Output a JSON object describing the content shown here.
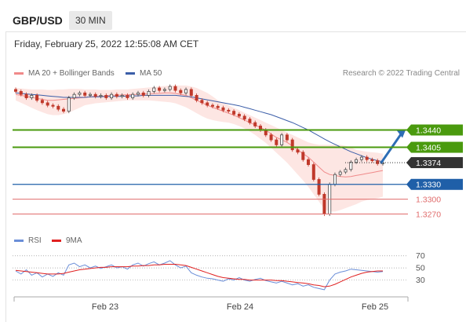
{
  "header": {
    "pair": "GBP/USD",
    "timeframe": "30 MIN"
  },
  "date_line": "Friday, February 25, 2022 12:55:08 AM CET",
  "credit": "Research © 2022 Trading Central",
  "colors": {
    "resistance": "#4a9a0e",
    "support": "#1f5fa8",
    "weak_support": "#e06c6c",
    "current": "#333333",
    "bollinger_fill": "#fde3e0",
    "ma20": "#f08a8a",
    "ma50": "#3b5ea8",
    "candle_up": "#4a4a4a",
    "candle_down": "#c0392b",
    "rsi": "#6a8ed8",
    "rsi_ma": "#e02020",
    "arrow": "#2d6db5"
  },
  "chart_data": [
    {
      "type": "candlestick",
      "legend": [
        {
          "name": "MA 20 + Bollinger Bands",
          "color": "#f08a8a"
        },
        {
          "name": "MA 50",
          "color": "#3b5ea8"
        }
      ],
      "x_labels": [
        "Feb 23",
        "Feb 24",
        "Feb 25"
      ],
      "ylim": [
        1.3255,
        1.3525
      ],
      "levels": [
        {
          "value": 1.344,
          "label": "1.3440",
          "kind": "resistance"
        },
        {
          "value": 1.3405,
          "label": "1.3405",
          "kind": "resistance"
        },
        {
          "value": 1.3374,
          "label": "1.3374",
          "kind": "current"
        },
        {
          "value": 1.333,
          "label": "1.3330",
          "kind": "support"
        },
        {
          "value": 1.33,
          "label": "1.3300",
          "kind": "weak_support"
        },
        {
          "value": 1.327,
          "label": "1.3270",
          "kind": "weak_support"
        }
      ],
      "close": [
        1.3518,
        1.3512,
        1.3505,
        1.351,
        1.35,
        1.3495,
        1.349,
        1.3488,
        1.3482,
        1.3478,
        1.3505,
        1.3512,
        1.3515,
        1.351,
        1.3512,
        1.3508,
        1.351,
        1.3505,
        1.3512,
        1.3508,
        1.351,
        1.3505,
        1.3512,
        1.3515,
        1.351,
        1.3518,
        1.3525,
        1.352,
        1.3522,
        1.3528,
        1.352,
        1.3515,
        1.3522,
        1.351,
        1.35,
        1.3495,
        1.349,
        1.3488,
        1.3485,
        1.348,
        1.3478,
        1.3472,
        1.3468,
        1.3462,
        1.3455,
        1.3448,
        1.344,
        1.343,
        1.342,
        1.341,
        1.343,
        1.342,
        1.34,
        1.3395,
        1.338,
        1.337,
        1.334,
        1.331,
        1.327,
        1.333,
        1.335,
        1.3355,
        1.336,
        1.3375,
        1.338,
        1.3385,
        1.338,
        1.3378,
        1.3372,
        1.3374
      ],
      "ma20": [
        1.3512,
        1.351,
        1.3508,
        1.3506,
        1.3504,
        1.3502,
        1.35,
        1.35,
        1.3501,
        1.3502,
        1.3503,
        1.3504,
        1.3505,
        1.3506,
        1.3507,
        1.3508,
        1.3508,
        1.3509,
        1.351,
        1.351,
        1.3511,
        1.3511,
        1.3512,
        1.3512,
        1.3513,
        1.3513,
        1.3514,
        1.3514,
        1.3515,
        1.3515,
        1.3514,
        1.3512,
        1.351,
        1.3505,
        1.35,
        1.3495,
        1.349,
        1.3486,
        1.3482,
        1.3478,
        1.3474,
        1.347,
        1.3465,
        1.346,
        1.3455,
        1.345,
        1.3445,
        1.344,
        1.3432,
        1.3425,
        1.342,
        1.3415,
        1.3408,
        1.34,
        1.3392,
        1.3385,
        1.3375,
        1.3365,
        1.3355,
        1.335,
        1.3348,
        1.3346,
        1.3345,
        1.3346,
        1.3348,
        1.335,
        1.3352,
        1.3354,
        1.3356,
        1.3358
      ],
      "bb_upper": [
        1.3525,
        1.3524,
        1.3523,
        1.3522,
        1.3522,
        1.3522,
        1.3521,
        1.3521,
        1.3522,
        1.3522,
        1.3523,
        1.3523,
        1.3523,
        1.3522,
        1.3522,
        1.3522,
        1.3521,
        1.3521,
        1.3521,
        1.3522,
        1.3522,
        1.3522,
        1.3523,
        1.3524,
        1.3525,
        1.3526,
        1.3527,
        1.3528,
        1.3529,
        1.353,
        1.353,
        1.353,
        1.353,
        1.3528,
        1.3525,
        1.352,
        1.3515,
        1.3508,
        1.35,
        1.3495,
        1.349,
        1.3485,
        1.348,
        1.3475,
        1.347,
        1.3465,
        1.346,
        1.3455,
        1.345,
        1.3445,
        1.344,
        1.3435,
        1.343,
        1.3425,
        1.342,
        1.3415,
        1.3412,
        1.341,
        1.341,
        1.341,
        1.341,
        1.341,
        1.3408,
        1.3405,
        1.34,
        1.3398,
        1.3396,
        1.3395,
        1.3394,
        1.3392
      ],
      "bb_lower": [
        1.35,
        1.3495,
        1.349,
        1.3485,
        1.348,
        1.3476,
        1.3472,
        1.347,
        1.347,
        1.3472,
        1.3475,
        1.348,
        1.3485,
        1.349,
        1.3492,
        1.3494,
        1.3495,
        1.3496,
        1.3497,
        1.3498,
        1.3499,
        1.35,
        1.35,
        1.35,
        1.35,
        1.35,
        1.3499,
        1.3498,
        1.3497,
        1.3496,
        1.3494,
        1.349,
        1.3486,
        1.348,
        1.3474,
        1.3468,
        1.3463,
        1.346,
        1.3458,
        1.3456,
        1.3455,
        1.3452,
        1.3448,
        1.3443,
        1.3437,
        1.343,
        1.3422,
        1.3414,
        1.3404,
        1.3394,
        1.3384,
        1.3374,
        1.3362,
        1.335,
        1.3338,
        1.3325,
        1.331,
        1.3295,
        1.328,
        1.3275,
        1.3275,
        1.3278,
        1.3282,
        1.3286,
        1.329,
        1.3295,
        1.3298,
        1.33,
        1.3302,
        1.3305
      ],
      "ma50": [
        1.3515,
        1.3514,
        1.3513,
        1.3512,
        1.3511,
        1.351,
        1.3509,
        1.3508,
        1.3507,
        1.3506,
        1.3506,
        1.3506,
        1.3506,
        1.3506,
        1.3507,
        1.3507,
        1.3507,
        1.3508,
        1.3508,
        1.3508,
        1.3508,
        1.3509,
        1.3509,
        1.3509,
        1.351,
        1.351,
        1.351,
        1.351,
        1.351,
        1.351,
        1.351,
        1.3509,
        1.3508,
        1.3507,
        1.3505,
        1.3503,
        1.3501,
        1.3499,
        1.3497,
        1.3495,
        1.3493,
        1.3491,
        1.3489,
        1.3486,
        1.3483,
        1.348,
        1.3477,
        1.3474,
        1.3471,
        1.3467,
        1.3463,
        1.3459,
        1.3455,
        1.345,
        1.3445,
        1.344,
        1.3434,
        1.3428,
        1.3422,
        1.3416,
        1.3411,
        1.3406,
        1.3401,
        1.3396,
        1.3392,
        1.3388,
        1.3384,
        1.3381,
        1.3378,
        1.3376
      ],
      "forecast_arrow": {
        "from": 1.3374,
        "to": 1.344
      }
    },
    {
      "type": "line",
      "legend": [
        {
          "name": "RSI",
          "color": "#6a8ed8"
        },
        {
          "name": "9MA",
          "color": "#e02020"
        }
      ],
      "ylim": [
        10,
        80
      ],
      "y_ticks": [
        {
          "value": 70,
          "label": "70"
        },
        {
          "value": 50,
          "label": "50"
        },
        {
          "value": 30,
          "label": "30"
        }
      ],
      "rsi": [
        45,
        40,
        47,
        38,
        42,
        35,
        40,
        36,
        42,
        38,
        55,
        58,
        52,
        55,
        50,
        53,
        49,
        52,
        55,
        50,
        52,
        48,
        55,
        58,
        53,
        57,
        60,
        55,
        58,
        62,
        55,
        50,
        53,
        42,
        38,
        35,
        33,
        32,
        30,
        28,
        32,
        30,
        34,
        30,
        28,
        31,
        33,
        29,
        27,
        25,
        28,
        25,
        22,
        24,
        20,
        22,
        18,
        16,
        14,
        30,
        40,
        43,
        45,
        48,
        47,
        46,
        45,
        44,
        43,
        44
      ],
      "ma9": [
        46,
        45,
        44,
        43,
        42,
        41,
        40,
        40,
        40,
        41,
        43,
        45,
        47,
        48,
        49,
        50,
        51,
        51,
        52,
        52,
        52,
        52,
        53,
        53,
        54,
        54,
        55,
        55,
        56,
        56,
        56,
        55,
        54,
        51,
        48,
        45,
        42,
        39,
        36,
        34,
        33,
        32,
        31,
        31,
        30,
        30,
        30,
        30,
        30,
        29,
        29,
        28,
        27,
        26,
        25,
        24,
        22,
        21,
        19,
        20,
        23,
        27,
        31,
        35,
        38,
        41,
        43,
        44,
        45,
        45
      ]
    }
  ]
}
